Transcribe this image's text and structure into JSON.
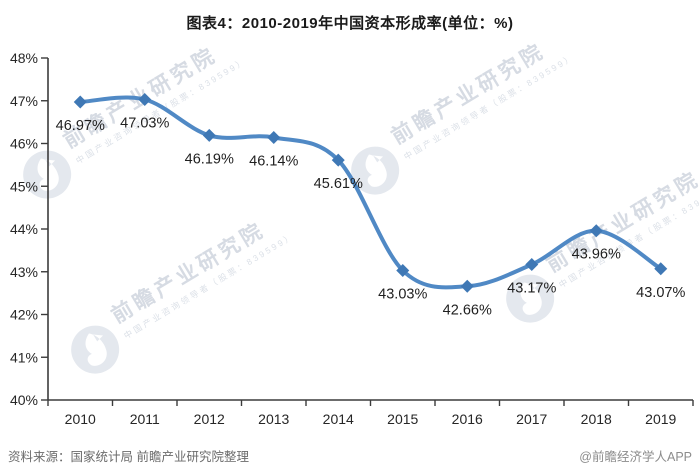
{
  "title": "图表4：2010-2019年中国资本形成率(单位：%)",
  "chart_data": {
    "type": "line",
    "title": "图表4：2010-2019年中国资本形成率(单位：%)",
    "categories": [
      "2010",
      "2011",
      "2012",
      "2013",
      "2014",
      "2015",
      "2016",
      "2017",
      "2018",
      "2019"
    ],
    "series": [
      {
        "name": "资本形成率",
        "values": [
          46.97,
          47.03,
          46.19,
          46.14,
          45.61,
          43.03,
          42.66,
          43.17,
          43.96,
          43.07
        ]
      }
    ],
    "point_labels": [
      "46.97%",
      "47.03%",
      "46.19%",
      "46.14%",
      "45.61%",
      "43.03%",
      "42.66%",
      "43.17%",
      "43.96%",
      "43.07%"
    ],
    "ylim": [
      40,
      48
    ],
    "ytick_step": 1,
    "ytick_suffix": "%",
    "grid": false,
    "legend_position": "none",
    "smooth": true,
    "line_color": "#5089c5",
    "marker_color": "#3f78b5",
    "marker_shape": "diamond",
    "axis_color": "#3c3c3c",
    "label_color": "#1f1f1f",
    "tick_label_color": "#262626"
  },
  "watermark": {
    "brand": "前瞻产业研究院",
    "tagline": "中国产业咨询领导者（股票：839599）"
  },
  "footer": {
    "source": "资料来源：国家统计局 前瞻产业研究院整理",
    "credit": "@前瞻经济学人APP"
  }
}
